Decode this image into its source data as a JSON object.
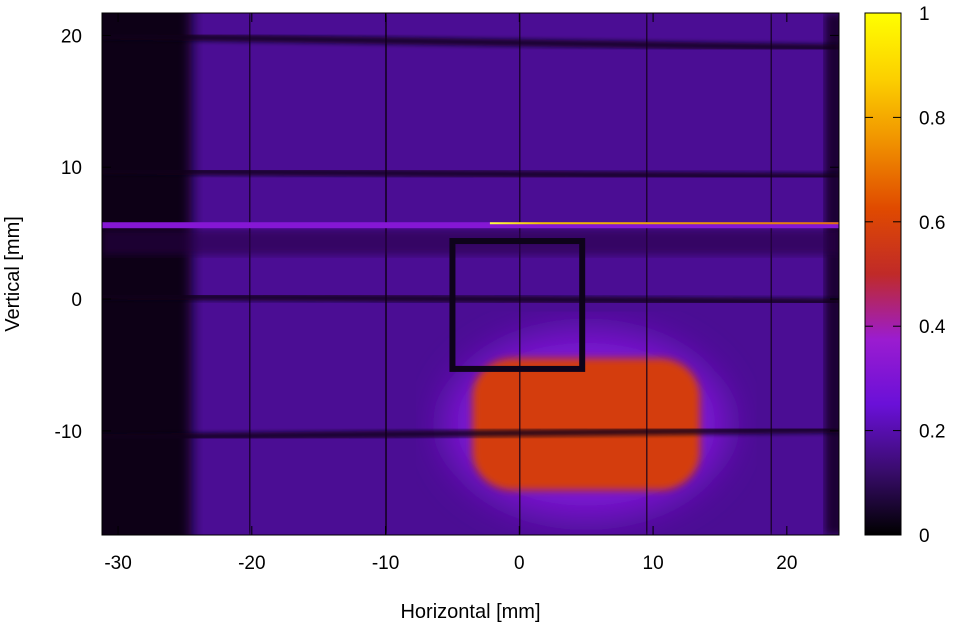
{
  "chart_data": {
    "type": "heatmap",
    "title": "",
    "xlabel": "Horizontal [mm]",
    "ylabel": "Vertical [mm]",
    "xlim": [
      -31.2,
      23.9
    ],
    "ylim": [
      -17.9,
      21.7
    ],
    "x_ticks": [
      -30,
      -20,
      -10,
      0,
      10,
      20
    ],
    "x_tick_labels": [
      "-30",
      "-20",
      "-10",
      "0",
      "10",
      "20"
    ],
    "y_ticks": [
      -10,
      0,
      10,
      20
    ],
    "y_tick_labels": [
      "-10",
      "0",
      "10",
      "20"
    ],
    "colorbar": {
      "range": [
        0,
        1
      ],
      "ticks": [
        0,
        0.2,
        0.4,
        0.6,
        0.8,
        1
      ],
      "tick_labels": [
        "0",
        "0.2",
        "0.4",
        "0.6",
        "0.8",
        "1"
      ],
      "colormap": [
        "#000000",
        "#3a0c6e",
        "#6a10d8",
        "#9b1cd0",
        "#c02a28",
        "#e04a00",
        "#f09000",
        "#fcd000",
        "#ffff00"
      ]
    },
    "background_intensity": 0.17,
    "left_dark_band": {
      "x_range": [
        -31.2,
        -24.5
      ],
      "intensity": 0.02
    },
    "vertical_shadow_lines_x": [
      -20.2,
      -10,
      0,
      9.5,
      18.8
    ],
    "horizontal_shadow_lines_y": [
      19.5,
      9.5,
      0,
      -10.2
    ],
    "bright_stripe_y": 5.6,
    "bright_stripe_highlight_x_range": [
      -2.2,
      23.9
    ],
    "frame_rect": {
      "x_range": [
        -5,
        4.7
      ],
      "y_range": [
        -5.3,
        4.4
      ]
    },
    "hot_spot": {
      "center": [
        5,
        -9.5
      ],
      "half_width": [
        8.5,
        5
      ],
      "intensity": 0.58
    },
    "grid": false,
    "legend": "none"
  }
}
